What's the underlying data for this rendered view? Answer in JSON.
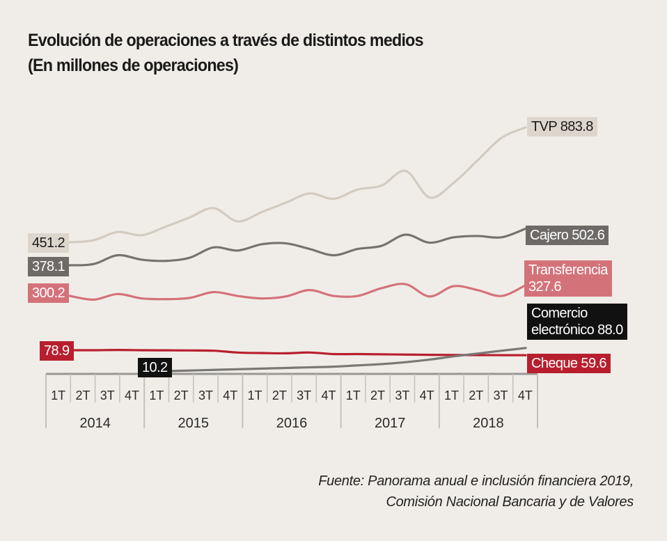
{
  "title_line1": "Evolución de operaciones a través de distintos medios",
  "title_line2": "(En millones de operaciones)",
  "footer_line1": "Fuente: Panorama anual e inclusión financiera 2019,",
  "footer_line2": "Comisión Nacional Bancaria y de Valores",
  "chart_data": {
    "type": "line",
    "title": "Evolución de operaciones a través de distintos medios (En millones de operaciones)",
    "xlabel": "",
    "ylabel": "",
    "grid": false,
    "x_years": [
      "2014",
      "2015",
      "2016",
      "2017",
      "2018"
    ],
    "x": [
      "1T",
      "2T",
      "3T",
      "4T",
      "1T",
      "2T",
      "3T",
      "4T",
      "1T",
      "2T",
      "3T",
      "4T",
      "1T",
      "2T",
      "3T",
      "4T",
      "1T",
      "2T",
      "3T",
      "4T"
    ],
    "series": [
      {
        "name": "TVP",
        "color": "#d3cbc0",
        "label_color": "#ddd6cc",
        "text_color": "#1a1a1a",
        "start_label": "451.2",
        "end_label": "TVP 883.8",
        "values": [
          451.2,
          459,
          490,
          478,
          510,
          545,
          580,
          530,
          565,
          600,
          635,
          615,
          650,
          665,
          720,
          620,
          675,
          760,
          845,
          883.8
        ]
      },
      {
        "name": "Cajero",
        "color": "#757270",
        "label_color": "#6e6a67",
        "text_color": "#ffffff",
        "start_label": "378.1",
        "end_label": "Cajero 502.6",
        "values": [
          378.1,
          382,
          410,
          396,
          392,
          402,
          435,
          425,
          445,
          448,
          430,
          410,
          430,
          440,
          480,
          450,
          470,
          475,
          470,
          502.6
        ]
      },
      {
        "name": "Transferencia",
        "color": "#d4727a",
        "label_color": "#d4727a",
        "text_color": "#ffffff",
        "start_label": "300.2",
        "end_label": "Transferencia 327.6",
        "values": [
          300.2,
          285,
          305,
          290,
          287,
          292,
          310,
          300,
          290,
          298,
          315,
          300,
          300,
          320,
          330,
          298,
          325,
          315,
          300,
          327.6
        ]
      },
      {
        "name": "Cheque",
        "color": "#b81f2e",
        "label_color": "#b81f2e",
        "text_color": "#ffffff",
        "start_label": "78.9",
        "end_label": "Cheque 59.6",
        "values": [
          78.9,
          79,
          80,
          79,
          78.5,
          78,
          77,
          70,
          68,
          67,
          70,
          64,
          64,
          63,
          62,
          61,
          60.5,
          60,
          59.8,
          59.6
        ]
      },
      {
        "name": "Comercio electrónico",
        "color": "#7a7875",
        "label_color": "#111111",
        "text_color": "#ffffff",
        "start_label": "10.2",
        "end_label_line1": "Comercio",
        "end_label_line2": "electrónico 88.0",
        "start_quarter_index": 4,
        "values": [
          null,
          null,
          null,
          null,
          10.2,
          12,
          14,
          16,
          18,
          20,
          22,
          24,
          28,
          32,
          38,
          46,
          56,
          66,
          77,
          88.0
        ]
      }
    ]
  }
}
